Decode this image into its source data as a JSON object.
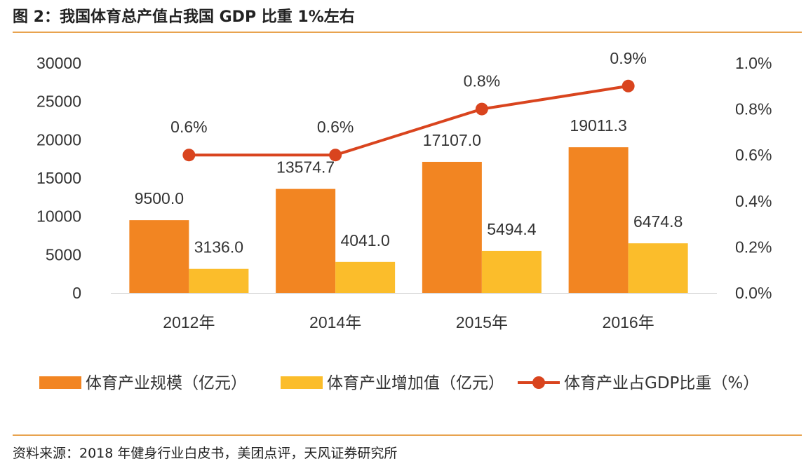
{
  "header": {
    "title": "图 2：我国体育总产值占我国 GDP 比重 1%左右"
  },
  "footer": {
    "source": "资料来源：2018 年健身行业白皮书，美团点评，天风证券研究所"
  },
  "colors": {
    "series_scale": "#f28522",
    "series_added": "#fbbd2b",
    "series_ratio": "#d9441e",
    "rule": "#e8a34f"
  },
  "chart_data": {
    "type": "bar",
    "categories": [
      "2012年",
      "2014年",
      "2015年",
      "2016年"
    ],
    "series": [
      {
        "name": "体育产业规模（亿元）",
        "type": "bar",
        "axis": "left",
        "values": [
          9500.0,
          13574.7,
          17107.0,
          19011.3
        ],
        "labels": [
          "9500.0",
          "13574.7",
          "17107.0",
          "19011.3"
        ]
      },
      {
        "name": "体育产业增加值（亿元）",
        "type": "bar",
        "axis": "left",
        "values": [
          3136.0,
          4041.0,
          5494.4,
          6474.8
        ],
        "labels": [
          "3136.0",
          "4041.0",
          "5494.4",
          "6474.8"
        ]
      },
      {
        "name": "体育产业占GDP比重（%）",
        "type": "line",
        "axis": "right",
        "values": [
          0.6,
          0.6,
          0.8,
          0.9
        ],
        "labels": [
          "0.6%",
          "0.6%",
          "0.8%",
          "0.9%"
        ]
      }
    ],
    "ylim": [
      0,
      30000
    ],
    "y_ticks": [
      "0",
      "5000",
      "10000",
      "15000",
      "20000",
      "25000",
      "30000"
    ],
    "y2lim": [
      0,
      1.0
    ],
    "y2_ticks": [
      "0.0%",
      "0.2%",
      "0.4%",
      "0.6%",
      "0.8%",
      "1.0%"
    ],
    "legend_position": "bottom",
    "grid": false
  }
}
